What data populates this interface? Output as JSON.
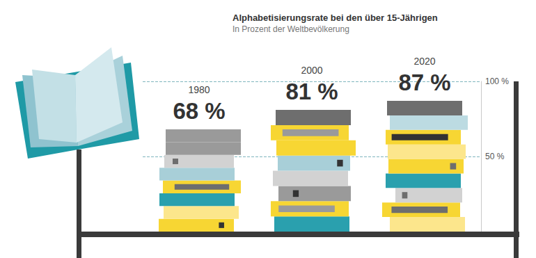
{
  "chart_data": {
    "type": "bar",
    "title": "Alphabetisierungsrate bei den über 15-Jährigen",
    "subtitle": "In Prozent der Weltbevölkerung",
    "categories": [
      "1980",
      "2000",
      "2020"
    ],
    "values": [
      68,
      81,
      87
    ],
    "value_labels": [
      "68 %",
      "81 %",
      "87 %"
    ],
    "ylim": [
      0,
      100
    ],
    "yticks": [
      {
        "value": 50,
        "label": "50 %"
      },
      {
        "value": 100,
        "label": "100 %"
      }
    ],
    "grid": true,
    "data_labels": true,
    "tick_labels": "y"
  }
}
